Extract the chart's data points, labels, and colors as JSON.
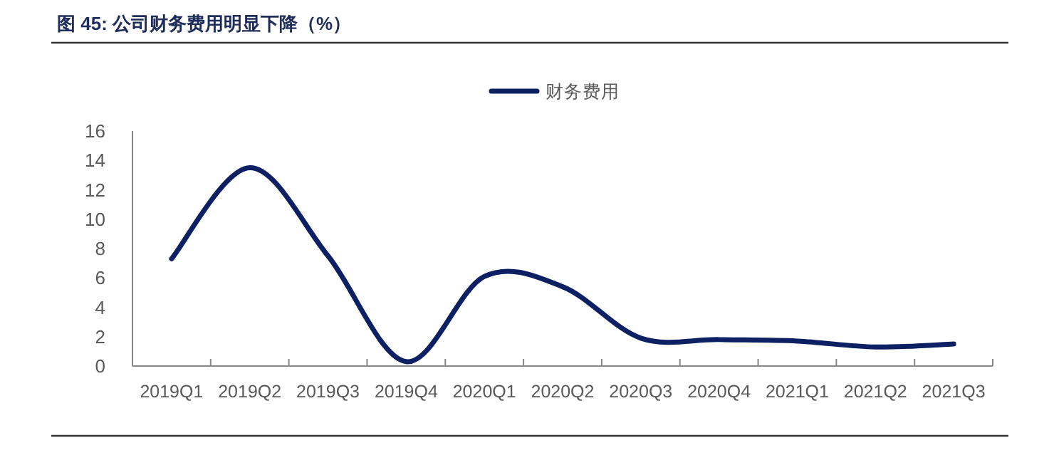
{
  "chart_data": {
    "type": "line",
    "title": "图 45: 公司财务费用明显下降（%）",
    "categories": [
      "2019Q1",
      "2019Q2",
      "2019Q3",
      "2019Q4",
      "2020Q1",
      "2020Q2",
      "2020Q3",
      "2020Q4",
      "2021Q1",
      "2021Q2",
      "2021Q3"
    ],
    "series": [
      {
        "name": "财务费用",
        "color": "#0d2064",
        "values": [
          7.3,
          13.5,
          7.5,
          0.3,
          6.1,
          5.4,
          1.9,
          1.8,
          1.7,
          1.3,
          1.5
        ]
      }
    ],
    "ylim": [
      0,
      16
    ],
    "yticks": [
      0,
      2,
      4,
      6,
      8,
      10,
      12,
      14,
      16
    ],
    "grid": false,
    "legend": "top",
    "marker": "none",
    "line_style": "solid"
  }
}
